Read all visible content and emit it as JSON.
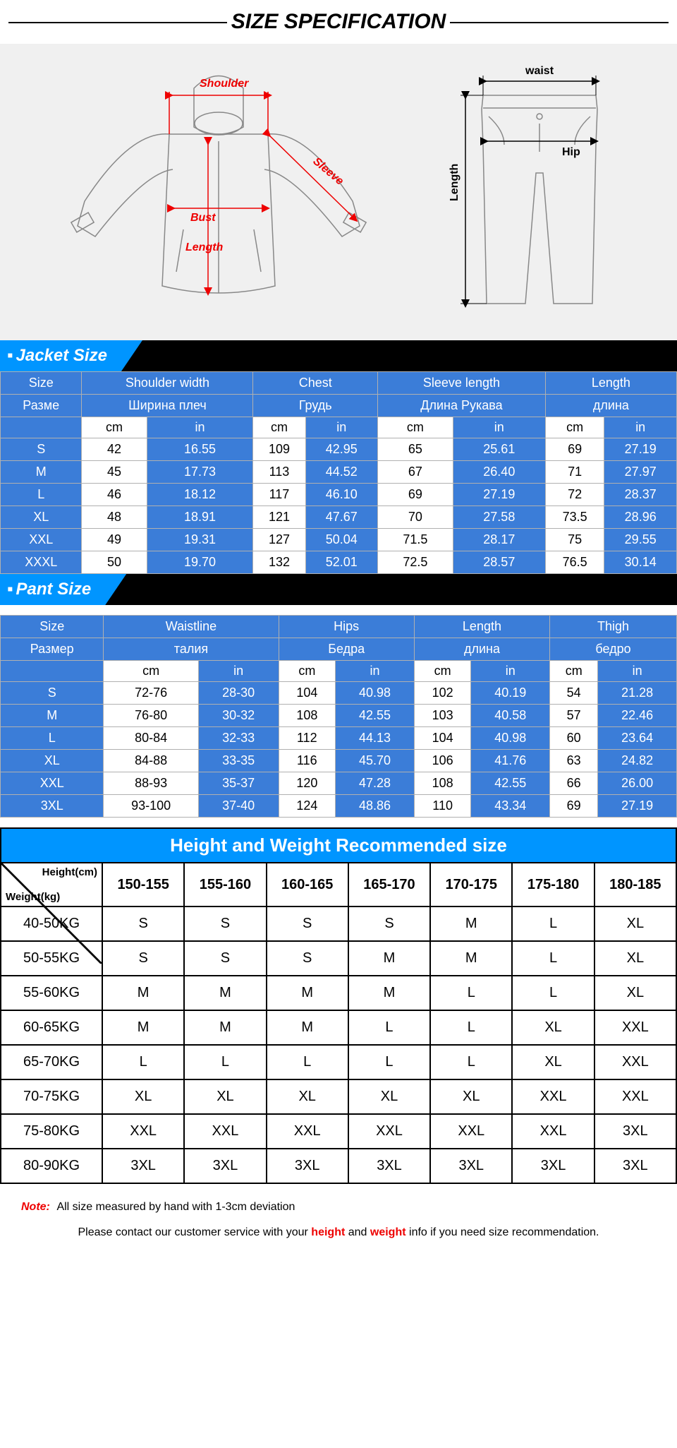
{
  "title": "SIZE SPECIFICATION",
  "colors": {
    "blue": "#3b7dd8",
    "cyan": "#0095ff",
    "red": "#e00",
    "black": "#000",
    "gray_bg": "#f0f0f0"
  },
  "diagram": {
    "jacket_labels": {
      "shoulder": "Shoulder",
      "sleeve": "Sleeve",
      "bust": "Bust",
      "length": "Length"
    },
    "pants_labels": {
      "waist": "waist",
      "hip": "Hip",
      "length": "Length"
    }
  },
  "jacket": {
    "section_title": "Jacket Size",
    "headers": [
      {
        "en": "Size",
        "ru": "Разме"
      },
      {
        "en": "Shoulder width",
        "ru": "Ширина плеч"
      },
      {
        "en": "Chest",
        "ru": "Грудь"
      },
      {
        "en": "Sleeve length",
        "ru": "Длина Рукава"
      },
      {
        "en": "Length",
        "ru": "длина"
      }
    ],
    "unit_row": [
      "cm",
      "in",
      "cm",
      "in",
      "cm",
      "in",
      "cm",
      "in"
    ],
    "rows": [
      {
        "size": "S",
        "v": [
          "42",
          "16.55",
          "109",
          "42.95",
          "65",
          "25.61",
          "69",
          "27.19"
        ]
      },
      {
        "size": "M",
        "v": [
          "45",
          "17.73",
          "113",
          "44.52",
          "67",
          "26.40",
          "71",
          "27.97"
        ]
      },
      {
        "size": "L",
        "v": [
          "46",
          "18.12",
          "117",
          "46.10",
          "69",
          "27.19",
          "72",
          "28.37"
        ]
      },
      {
        "size": "XL",
        "v": [
          "48",
          "18.91",
          "121",
          "47.67",
          "70",
          "27.58",
          "73.5",
          "28.96"
        ]
      },
      {
        "size": "XXL",
        "v": [
          "49",
          "19.31",
          "127",
          "50.04",
          "71.5",
          "28.17",
          "75",
          "29.55"
        ]
      },
      {
        "size": "XXXL",
        "v": [
          "50",
          "19.70",
          "132",
          "52.01",
          "72.5",
          "28.57",
          "76.5",
          "30.14"
        ]
      }
    ]
  },
  "pant": {
    "section_title": "Pant Size",
    "headers": [
      {
        "en": "Size",
        "ru": "Размер"
      },
      {
        "en": "Waistline",
        "ru": "талия"
      },
      {
        "en": "Hips",
        "ru": "Бедра"
      },
      {
        "en": "Length",
        "ru": "длина"
      },
      {
        "en": "Thigh",
        "ru": "бедро"
      }
    ],
    "unit_row": [
      "cm",
      "in",
      "cm",
      "in",
      "cm",
      "in",
      "cm",
      "in"
    ],
    "rows": [
      {
        "size": "S",
        "v": [
          "72-76",
          "28-30",
          "104",
          "40.98",
          "102",
          "40.19",
          "54",
          "21.28"
        ]
      },
      {
        "size": "M",
        "v": [
          "76-80",
          "30-32",
          "108",
          "42.55",
          "103",
          "40.58",
          "57",
          "22.46"
        ]
      },
      {
        "size": "L",
        "v": [
          "80-84",
          "32-33",
          "112",
          "44.13",
          "104",
          "40.98",
          "60",
          "23.64"
        ]
      },
      {
        "size": "XL",
        "v": [
          "84-88",
          "33-35",
          "116",
          "45.70",
          "106",
          "41.76",
          "63",
          "24.82"
        ]
      },
      {
        "size": "XXL",
        "v": [
          "88-93",
          "35-37",
          "120",
          "47.28",
          "108",
          "42.55",
          "66",
          "26.00"
        ]
      },
      {
        "size": "3XL",
        "v": [
          "93-100",
          "37-40",
          "124",
          "48.86",
          "110",
          "43.34",
          "69",
          "27.19"
        ]
      }
    ]
  },
  "recommend": {
    "title": "Height and Weight Recommended size",
    "diag_top": "Height(cm)",
    "diag_bot": "Weight(kg)",
    "heights": [
      "150-155",
      "155-160",
      "160-165",
      "165-170",
      "170-175",
      "175-180",
      "180-185"
    ],
    "rows": [
      {
        "w": "40-50KG",
        "v": [
          "S",
          "S",
          "S",
          "S",
          "M",
          "L",
          "XL"
        ]
      },
      {
        "w": "50-55KG",
        "v": [
          "S",
          "S",
          "S",
          "M",
          "M",
          "L",
          "XL"
        ]
      },
      {
        "w": "55-60KG",
        "v": [
          "M",
          "M",
          "M",
          "M",
          "L",
          "L",
          "XL"
        ]
      },
      {
        "w": "60-65KG",
        "v": [
          "M",
          "M",
          "M",
          "L",
          "L",
          "XL",
          "XXL"
        ]
      },
      {
        "w": "65-70KG",
        "v": [
          "L",
          "L",
          "L",
          "L",
          "L",
          "XL",
          "XXL"
        ]
      },
      {
        "w": "70-75KG",
        "v": [
          "XL",
          "XL",
          "XL",
          "XL",
          "XL",
          "XXL",
          "XXL"
        ]
      },
      {
        "w": "75-80KG",
        "v": [
          "XXL",
          "XXL",
          "XXL",
          "XXL",
          "XXL",
          "XXL",
          "3XL"
        ]
      },
      {
        "w": "80-90KG",
        "v": [
          "3XL",
          "3XL",
          "3XL",
          "3XL",
          "3XL",
          "3XL",
          "3XL"
        ]
      }
    ]
  },
  "footer": {
    "note_label": "Note:",
    "line1": "All size measured by hand with 1-3cm deviation",
    "line2_pre": "Please contact our customer service with your ",
    "hl1": "height",
    "mid": " and ",
    "hl2": "weight",
    "line2_post": " info if you need size recommendation."
  }
}
